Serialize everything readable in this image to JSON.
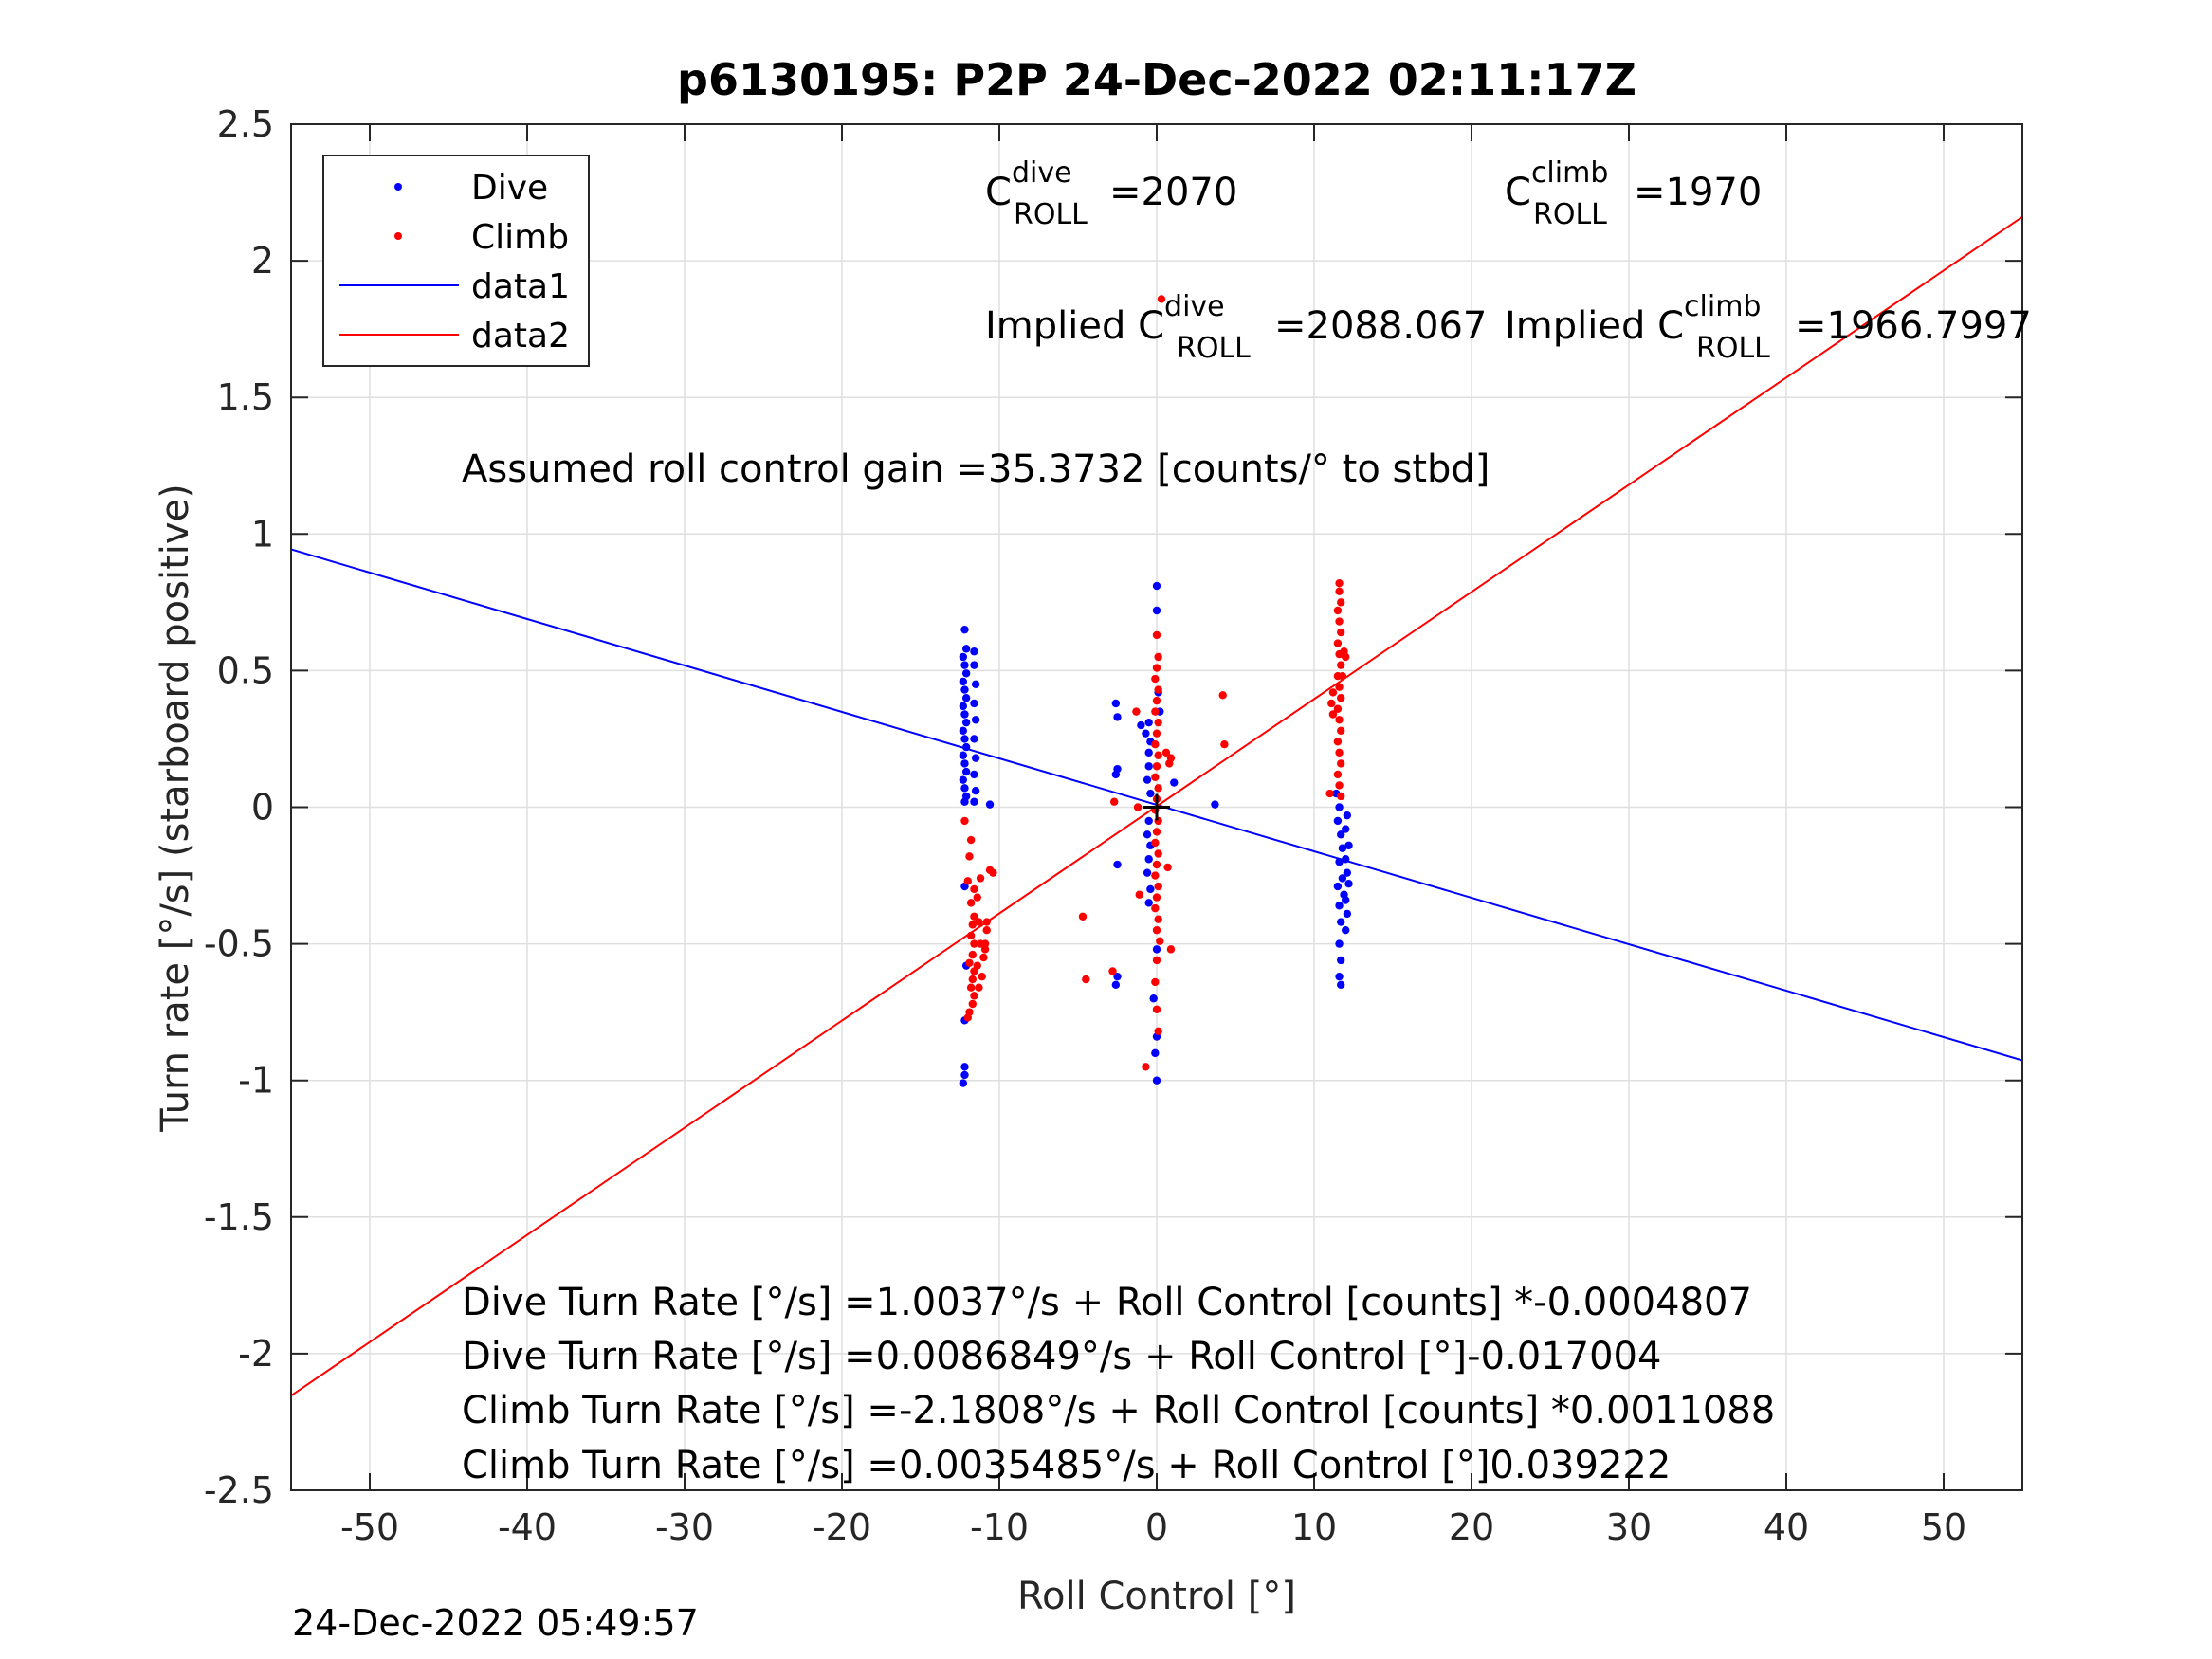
{
  "chart_data": {
    "type": "scatter",
    "title": "p6130195: P2P 24-Dec-2022 02:11:17Z",
    "xlabel": "Roll Control [°]",
    "ylabel": "Turn rate [°/s] (starboard positive)",
    "xlim": [
      -55,
      55
    ],
    "ylim": [
      -2.5,
      2.5
    ],
    "x_ticks": [
      -50,
      -40,
      -30,
      -20,
      -10,
      0,
      10,
      20,
      30,
      40,
      50
    ],
    "x_tick_labels": [
      "-50",
      "-40",
      "-30",
      "-20",
      "-10",
      "0",
      "10",
      "20",
      "30",
      "40",
      "50"
    ],
    "y_ticks": [
      -2.5,
      -2,
      -1.5,
      -1,
      -0.5,
      0,
      0.5,
      1,
      1.5,
      2,
      2.5
    ],
    "y_tick_labels": [
      "-2.5",
      "-2",
      "-1.5",
      "-1",
      "-0.5",
      "0",
      "0.5",
      "1",
      "1.5",
      "2",
      "2.5"
    ],
    "grid": true,
    "legend_position": "top-left",
    "series": [
      {
        "name": "Dive",
        "kind": "points",
        "color": "#0000ff",
        "points": [
          [
            -12.2,
            0.65
          ],
          [
            -12.1,
            0.58
          ],
          [
            -12.3,
            0.55
          ],
          [
            -12.2,
            0.52
          ],
          [
            -12.1,
            0.49
          ],
          [
            -12.3,
            0.46
          ],
          [
            -12.2,
            0.43
          ],
          [
            -12.1,
            0.4
          ],
          [
            -12.3,
            0.37
          ],
          [
            -12.2,
            0.34
          ],
          [
            -12.1,
            0.31
          ],
          [
            -12.3,
            0.28
          ],
          [
            -12.2,
            0.25
          ],
          [
            -12.1,
            0.22
          ],
          [
            -12.3,
            0.19
          ],
          [
            -12.2,
            0.16
          ],
          [
            -12.1,
            0.13
          ],
          [
            -12.3,
            0.1
          ],
          [
            -12.2,
            0.07
          ],
          [
            -12.1,
            0.04
          ],
          [
            -12.2,
            0.02
          ],
          [
            -11.6,
            0.57
          ],
          [
            -11.6,
            0.52
          ],
          [
            -11.5,
            0.45
          ],
          [
            -11.6,
            0.38
          ],
          [
            -11.5,
            0.32
          ],
          [
            -11.6,
            0.25
          ],
          [
            -11.5,
            0.18
          ],
          [
            -11.6,
            0.12
          ],
          [
            -11.5,
            0.06
          ],
          [
            -11.6,
            0.02
          ],
          [
            -10.6,
            0.01
          ],
          [
            -12.2,
            -0.29
          ],
          [
            -12.1,
            -0.58
          ],
          [
            -12.2,
            -0.78
          ],
          [
            -12.2,
            -0.95
          ],
          [
            -12.2,
            -0.98
          ],
          [
            -12.3,
            -1.01
          ],
          [
            -2.6,
            0.38
          ],
          [
            -2.5,
            0.33
          ],
          [
            -2.5,
            0.14
          ],
          [
            -2.6,
            0.12
          ],
          [
            -2.5,
            -0.21
          ],
          [
            -2.5,
            -0.62
          ],
          [
            -2.6,
            -0.65
          ],
          [
            -1.0,
            0.3
          ],
          [
            -0.7,
            0.27
          ],
          [
            -0.5,
            0.31
          ],
          [
            -0.4,
            0.24
          ],
          [
            -0.5,
            0.2
          ],
          [
            -0.5,
            0.15
          ],
          [
            -0.6,
            0.1
          ],
          [
            -0.4,
            0.05
          ],
          [
            -0.5,
            -0.05
          ],
          [
            -0.6,
            -0.1
          ],
          [
            -0.4,
            -0.14
          ],
          [
            -0.5,
            -0.19
          ],
          [
            -0.6,
            -0.24
          ],
          [
            -0.4,
            -0.3
          ],
          [
            -0.5,
            -0.35
          ],
          [
            0.0,
            0.81
          ],
          [
            0.0,
            0.72
          ],
          [
            0.1,
            0.42
          ],
          [
            0.2,
            0.35
          ],
          [
            0.0,
            -0.52
          ],
          [
            -0.2,
            -0.7
          ],
          [
            0.0,
            -0.84
          ],
          [
            -0.1,
            -0.9
          ],
          [
            0.0,
            -1.0
          ],
          [
            1.1,
            0.09
          ],
          [
            3.7,
            0.01
          ],
          [
            11.4,
            0.05
          ],
          [
            11.6,
            0.0
          ],
          [
            11.5,
            -0.05
          ],
          [
            11.7,
            -0.1
          ],
          [
            11.8,
            -0.15
          ],
          [
            11.6,
            -0.2
          ],
          [
            11.8,
            -0.26
          ],
          [
            11.5,
            -0.29
          ],
          [
            11.9,
            -0.32
          ],
          [
            11.6,
            -0.36
          ],
          [
            11.7,
            -0.42
          ],
          [
            11.6,
            -0.5
          ],
          [
            11.7,
            -0.56
          ],
          [
            11.6,
            -0.62
          ],
          [
            11.7,
            -0.65
          ],
          [
            12.1,
            -0.03
          ],
          [
            12.0,
            -0.08
          ],
          [
            12.2,
            -0.14
          ],
          [
            12.0,
            -0.19
          ],
          [
            12.1,
            -0.24
          ],
          [
            12.2,
            -0.28
          ],
          [
            12.0,
            -0.34
          ],
          [
            12.1,
            -0.39
          ],
          [
            12.0,
            -0.45
          ]
        ]
      },
      {
        "name": "Climb",
        "kind": "points",
        "color": "#ff0000",
        "points": [
          [
            -12.2,
            -0.05
          ],
          [
            -11.8,
            -0.12
          ],
          [
            -11.9,
            -0.18
          ],
          [
            -12.0,
            -0.27
          ],
          [
            -11.6,
            -0.3
          ],
          [
            -11.8,
            -0.35
          ],
          [
            -11.6,
            -0.4
          ],
          [
            -11.7,
            -0.43
          ],
          [
            -11.8,
            -0.47
          ],
          [
            -11.6,
            -0.5
          ],
          [
            -11.7,
            -0.54
          ],
          [
            -11.9,
            -0.57
          ],
          [
            -11.6,
            -0.6
          ],
          [
            -11.7,
            -0.63
          ],
          [
            -11.8,
            -0.66
          ],
          [
            -11.6,
            -0.69
          ],
          [
            -11.7,
            -0.72
          ],
          [
            -11.9,
            -0.75
          ],
          [
            -12.0,
            -0.77
          ],
          [
            -11.4,
            -0.33
          ],
          [
            -11.3,
            -0.42
          ],
          [
            -11.2,
            -0.5
          ],
          [
            -11.4,
            -0.58
          ],
          [
            -11.3,
            -0.66
          ],
          [
            -11.2,
            -0.26
          ],
          [
            -10.9,
            -0.52
          ],
          [
            -10.8,
            -0.45
          ],
          [
            -10.9,
            -0.5
          ],
          [
            -10.6,
            -0.23
          ],
          [
            -10.4,
            -0.24
          ],
          [
            -10.8,
            -0.42
          ],
          [
            -11.0,
            -0.55
          ],
          [
            -11.1,
            -0.62
          ],
          [
            -4.7,
            -0.4
          ],
          [
            -4.5,
            -0.63
          ],
          [
            -2.8,
            -0.6
          ],
          [
            -2.7,
            0.02
          ],
          [
            -1.1,
            -0.32
          ],
          [
            -0.7,
            -0.95
          ],
          [
            -1.2,
            0.0
          ],
          [
            -1.3,
            0.35
          ],
          [
            0.0,
            0.63
          ],
          [
            0.1,
            0.55
          ],
          [
            0.0,
            0.51
          ],
          [
            -0.1,
            0.47
          ],
          [
            0.1,
            0.43
          ],
          [
            0.0,
            0.39
          ],
          [
            -0.1,
            0.35
          ],
          [
            0.1,
            0.31
          ],
          [
            0.0,
            0.27
          ],
          [
            -0.1,
            0.23
          ],
          [
            0.1,
            0.19
          ],
          [
            0.0,
            0.15
          ],
          [
            -0.1,
            0.11
          ],
          [
            0.1,
            0.07
          ],
          [
            0.0,
            0.03
          ],
          [
            -0.1,
            -0.01
          ],
          [
            0.1,
            -0.05
          ],
          [
            0.0,
            -0.09
          ],
          [
            -0.1,
            -0.13
          ],
          [
            0.1,
            -0.17
          ],
          [
            0.0,
            -0.21
          ],
          [
            -0.1,
            -0.25
          ],
          [
            0.1,
            -0.29
          ],
          [
            0.0,
            -0.33
          ],
          [
            -0.1,
            -0.37
          ],
          [
            0.1,
            -0.41
          ],
          [
            0.0,
            -0.45
          ],
          [
            0.2,
            -0.49
          ],
          [
            0.0,
            -0.56
          ],
          [
            -0.1,
            -0.64
          ],
          [
            0.0,
            -0.74
          ],
          [
            0.1,
            -0.82
          ],
          [
            0.3,
            1.86
          ],
          [
            0.6,
            0.2
          ],
          [
            0.8,
            0.16
          ],
          [
            0.9,
            -0.52
          ],
          [
            4.2,
            0.41
          ],
          [
            4.3,
            0.23
          ],
          [
            0.7,
            -0.22
          ],
          [
            0.9,
            0.18
          ],
          [
            11.6,
            0.82
          ],
          [
            11.6,
            0.79
          ],
          [
            11.7,
            0.75
          ],
          [
            11.5,
            0.72
          ],
          [
            11.6,
            0.68
          ],
          [
            11.7,
            0.64
          ],
          [
            11.5,
            0.6
          ],
          [
            11.6,
            0.56
          ],
          [
            11.7,
            0.52
          ],
          [
            11.5,
            0.48
          ],
          [
            11.6,
            0.44
          ],
          [
            11.7,
            0.4
          ],
          [
            11.5,
            0.36
          ],
          [
            11.6,
            0.32
          ],
          [
            11.7,
            0.28
          ],
          [
            11.5,
            0.24
          ],
          [
            11.6,
            0.2
          ],
          [
            11.7,
            0.16
          ],
          [
            11.5,
            0.12
          ],
          [
            11.6,
            0.08
          ],
          [
            11.7,
            0.04
          ],
          [
            11.2,
            0.42
          ],
          [
            11.1,
            0.38
          ],
          [
            11.2,
            0.34
          ],
          [
            11.0,
            0.05
          ],
          [
            11.9,
            0.57
          ],
          [
            11.8,
            0.48
          ],
          [
            12.0,
            0.55
          ]
        ]
      },
      {
        "name": "data1",
        "kind": "line",
        "color": "#0000ff",
        "intercept": 0.0086849,
        "slope": -0.017004
      },
      {
        "name": "data2",
        "kind": "line",
        "color": "#ff0000",
        "intercept": 0.0035485,
        "slope": 0.039222
      }
    ],
    "center_marker": {
      "x": 0,
      "y": 0,
      "color": "#000000"
    },
    "annotations": {
      "c_dive_base": "C",
      "c_dive_sup": "dive",
      "c_dive_sub": "ROLL",
      "c_dive_val": "=2070",
      "c_climb_base": "C",
      "c_climb_sup": "climb",
      "c_climb_sub": "ROLL",
      "c_climb_val": "=1970",
      "implied_dive_prefix": "Implied C",
      "implied_dive_sup": "dive",
      "implied_dive_sub": "ROLL",
      "implied_dive_val": "=2088.067",
      "implied_climb_prefix": "Implied C",
      "implied_climb_sup": "climb",
      "implied_climb_sub": "ROLL",
      "implied_climb_val": "=1966.7997",
      "gain": "Assumed roll control gain =35.3732 [counts/° to stbd]",
      "fit_lines": [
        "Dive Turn Rate [°/s] =1.0037°/s + Roll Control [counts] *-0.0004807",
        "Dive Turn Rate [°/s] =0.0086849°/s + Roll Control [°]-0.017004",
        "Climb Turn Rate [°/s] =-2.1808°/s + Roll Control [counts] *0.0011088",
        "Climb Turn Rate [°/s] =0.0035485°/s + Roll Control [°]0.039222"
      ]
    }
  },
  "footer": {
    "timestamp": "24-Dec-2022 05:49:57"
  }
}
